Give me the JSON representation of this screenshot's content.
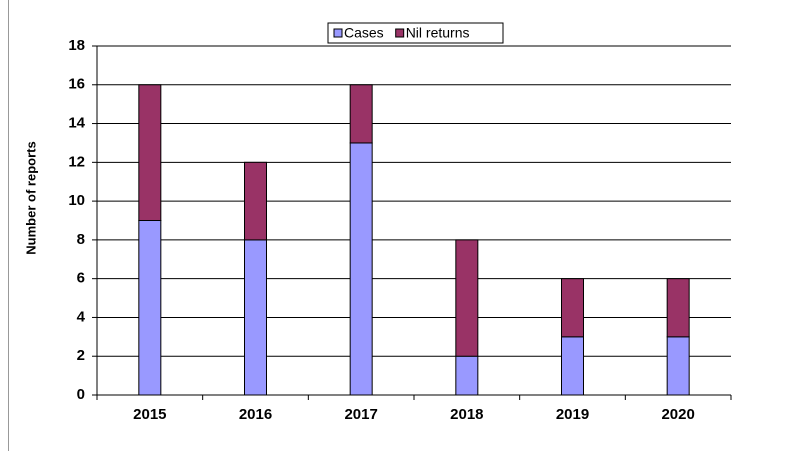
{
  "chart_data": {
    "type": "stacked_bar",
    "y_label": "Number of reports",
    "categories": [
      "2015",
      "2016",
      "2017",
      "2018",
      "2019",
      "2020"
    ],
    "series": [
      {
        "name": "Cases",
        "color": "#9999ff",
        "values": [
          9,
          8,
          13,
          2,
          3,
          3
        ]
      },
      {
        "name": "Nil returns",
        "color": "#993366",
        "values": [
          7,
          4,
          3,
          6,
          3,
          3
        ]
      }
    ],
    "ylim": [
      0,
      18
    ],
    "yticks": [
      0,
      2,
      4,
      6,
      8,
      10,
      12,
      14,
      16,
      18
    ],
    "grid": true,
    "legend": "top"
  }
}
